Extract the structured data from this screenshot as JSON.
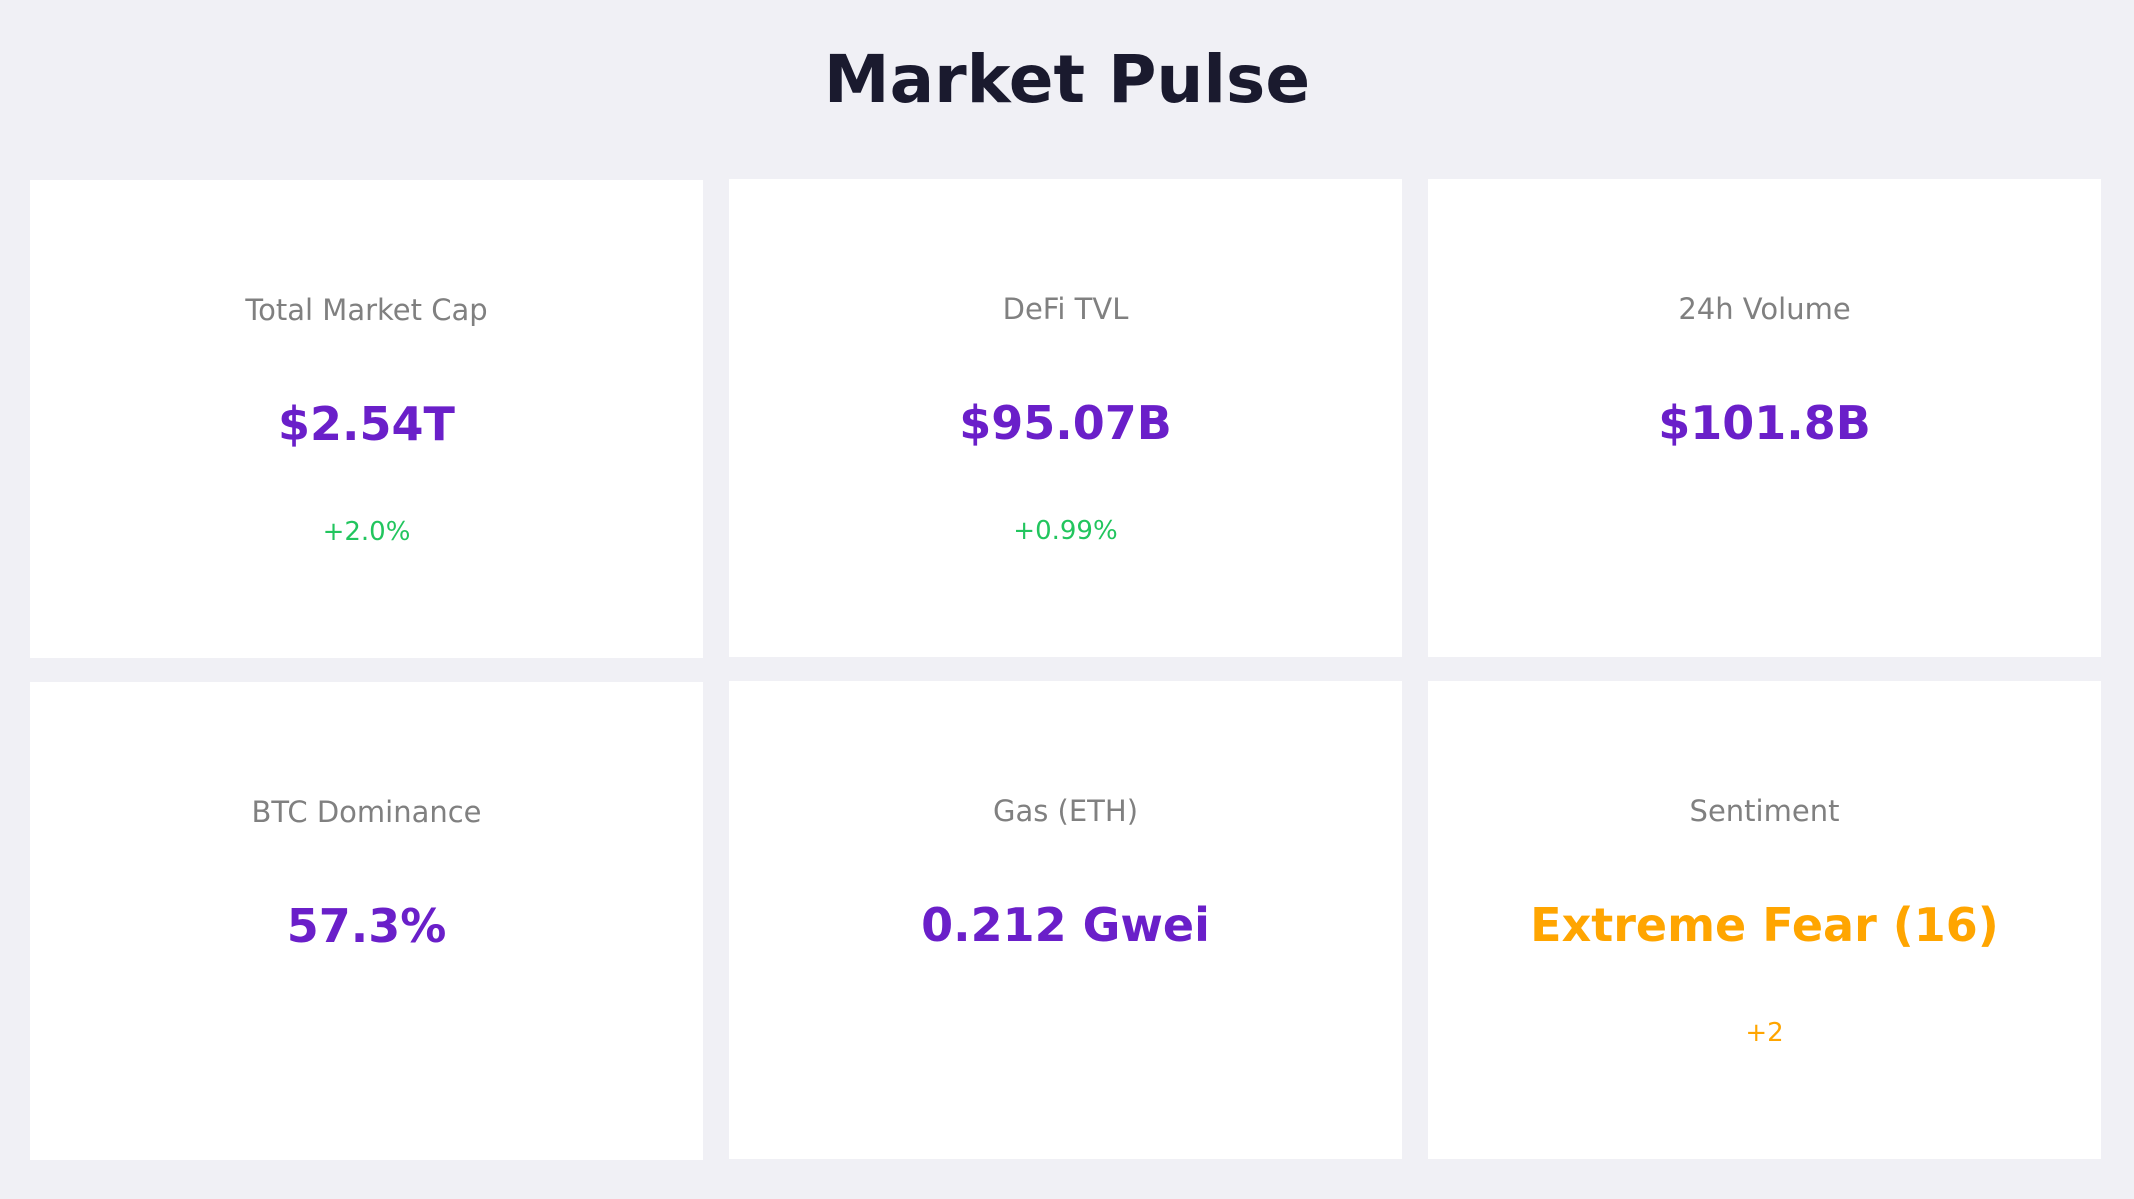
{
  "title": "Market Pulse",
  "colors": {
    "background": "#f0f0f5",
    "card": "#ffffff",
    "title": "#1a1a2e",
    "label": "#808080",
    "value_accent": "#6a1fc9",
    "positive": "#22c55e",
    "sentiment": "#ffa500"
  },
  "cards": [
    {
      "label": "Total Market Cap",
      "value": "$2.54T",
      "change": "+2.0%",
      "value_color": "#6a1fc9",
      "change_color": "#22c55e"
    },
    {
      "label": "DeFi TVL",
      "value": "$95.07B",
      "change": "+0.99%",
      "value_color": "#6a1fc9",
      "change_color": "#22c55e"
    },
    {
      "label": "24h Volume",
      "value": "$101.8B",
      "change": "",
      "value_color": "#6a1fc9",
      "change_color": "#22c55e"
    },
    {
      "label": "BTC Dominance",
      "value": "57.3%",
      "change": "",
      "value_color": "#6a1fc9",
      "change_color": "#22c55e"
    },
    {
      "label": "Gas (ETH)",
      "value": "0.212 Gwei",
      "change": "",
      "value_color": "#6a1fc9",
      "change_color": "#22c55e"
    },
    {
      "label": "Sentiment",
      "value": "Extreme Fear (16)",
      "change": "+2",
      "value_color": "#ffa500",
      "change_color": "#ffa500"
    }
  ]
}
